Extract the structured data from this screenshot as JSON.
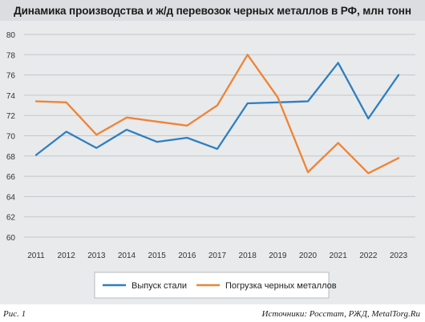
{
  "header": {
    "title": "Динамика производства и ж/д перевозок черных металлов в РФ, млн тонн"
  },
  "footer": {
    "figure_label": "Рис. 1",
    "source": "Источники: Росстат, РЖД, MetalTorg.Ru"
  },
  "colors": {
    "steel": "#2e7fc1",
    "loading": "#ee8436",
    "grid": "#c4c6c9",
    "background": "#e9eaec"
  },
  "chart_data": {
    "type": "line",
    "title": "Динамика производства и ж/д перевозок черных металлов в РФ, млн тонн",
    "categories": [
      "2011",
      "2012",
      "2013",
      "2014",
      "2015",
      "2016",
      "2017",
      "2018",
      "2019",
      "2020",
      "2021",
      "2022",
      "2023"
    ],
    "series": [
      {
        "name": "Выпуск стали",
        "color": "#2e7fc1",
        "values": [
          68.1,
          70.4,
          68.8,
          70.6,
          69.4,
          69.8,
          68.7,
          73.2,
          73.3,
          73.4,
          77.2,
          71.7,
          76.0
        ]
      },
      {
        "name": "Погрузка черных металлов",
        "color": "#ee8436",
        "values": [
          73.4,
          73.3,
          70.1,
          71.8,
          71.4,
          71.0,
          73.0,
          78.0,
          73.8,
          66.4,
          69.3,
          66.3,
          67.8
        ]
      }
    ],
    "ylim": [
      60,
      80
    ],
    "yticks": [
      "60",
      "62",
      "64",
      "66",
      "68",
      "70",
      "72",
      "74",
      "76",
      "78",
      "80"
    ],
    "grid": true,
    "legend_position": "bottom"
  }
}
